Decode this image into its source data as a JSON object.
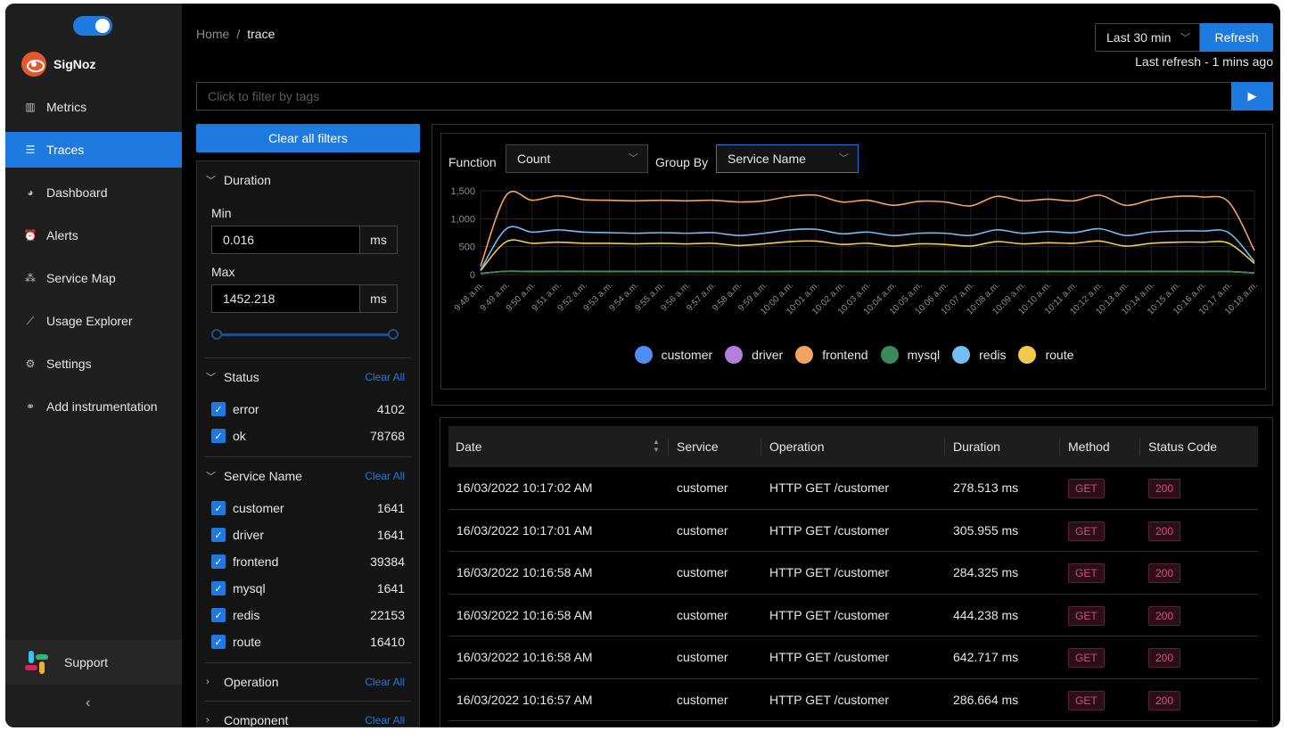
{
  "app": {
    "name": "SigNoz"
  },
  "sidebar": {
    "items": [
      {
        "label": "Metrics",
        "icon": "bar-chart-icon",
        "active": false
      },
      {
        "label": "Traces",
        "icon": "align-left-icon",
        "active": true
      },
      {
        "label": "Dashboard",
        "icon": "dashboard-icon",
        "active": false
      },
      {
        "label": "Alerts",
        "icon": "alarm-icon",
        "active": false
      },
      {
        "label": "Service Map",
        "icon": "deployment-unit-icon",
        "active": false
      },
      {
        "label": "Usage Explorer",
        "icon": "line-chart-icon",
        "active": false
      },
      {
        "label": "Settings",
        "icon": "gear-icon",
        "active": false
      },
      {
        "label": "Add instrumentation",
        "icon": "api-icon",
        "active": false
      }
    ],
    "support_label": "Support"
  },
  "breadcrumb": {
    "home": "Home",
    "current": "trace"
  },
  "header": {
    "time_range": "Last 30 min",
    "refresh_label": "Refresh",
    "last_refresh": "Last refresh - 1 mins ago"
  },
  "tag_filter": {
    "placeholder": "Click to filter by tags"
  },
  "filters": {
    "clear_all_label": "Clear all filters",
    "clear_label": "Clear All",
    "duration": {
      "title": "Duration",
      "min_label": "Min",
      "min_value": "0.016",
      "max_label": "Max",
      "max_value": "1452.218",
      "unit": "ms"
    },
    "status": {
      "title": "Status",
      "options": [
        {
          "name": "error",
          "count": "4102"
        },
        {
          "name": "ok",
          "count": "78768"
        }
      ]
    },
    "service_name": {
      "title": "Service Name",
      "options": [
        {
          "name": "customer",
          "count": "1641"
        },
        {
          "name": "driver",
          "count": "1641"
        },
        {
          "name": "frontend",
          "count": "39384"
        },
        {
          "name": "mysql",
          "count": "1641"
        },
        {
          "name": "redis",
          "count": "22153"
        },
        {
          "name": "route",
          "count": "16410"
        }
      ]
    },
    "operation": {
      "title": "Operation"
    },
    "component": {
      "title": "Component"
    }
  },
  "chart_controls": {
    "function_label": "Function",
    "function_value": "Count",
    "group_by_label": "Group By",
    "group_by_value": "Service Name"
  },
  "chart_data": {
    "type": "line",
    "categories": [
      "9:48 a.m.",
      "9:49 a.m.",
      "9:50 a.m.",
      "9:51 a.m.",
      "9:52 a.m.",
      "9:53 a.m.",
      "9:54 a.m.",
      "9:55 a.m.",
      "9:56 a.m.",
      "9:57 a.m.",
      "9:58 a.m.",
      "9:59 a.m.",
      "10:00 a.m.",
      "10:01 a.m.",
      "10:02 a.m.",
      "10:03 a.m.",
      "10:04 a.m.",
      "10:05 a.m.",
      "10:06 a.m.",
      "10:07 a.m.",
      "10:08 a.m.",
      "10:09 a.m.",
      "10:10 a.m.",
      "10:11 a.m.",
      "10:12 a.m.",
      "10:13 a.m.",
      "10:14 a.m.",
      "10:15 a.m.",
      "10:16 a.m.",
      "10:17 a.m.",
      "10:18 a.m."
    ],
    "y_ticks": [
      "0",
      "500",
      "1,000",
      "1,500"
    ],
    "ylim": [
      0,
      1500
    ],
    "grid": true,
    "legend_position": "bottom",
    "series": [
      {
        "name": "customer",
        "color": "#4e8df5",
        "values": [
          20,
          60,
          55,
          58,
          56,
          55,
          55,
          55,
          56,
          55,
          55,
          54,
          56,
          58,
          55,
          55,
          55,
          56,
          55,
          55,
          56,
          55,
          55,
          55,
          56,
          55,
          55,
          55,
          55,
          55,
          30
        ]
      },
      {
        "name": "driver",
        "color": "#b57edc",
        "values": [
          20,
          60,
          55,
          58,
          56,
          55,
          55,
          55,
          56,
          55,
          55,
          54,
          56,
          58,
          55,
          55,
          55,
          56,
          55,
          55,
          56,
          55,
          55,
          55,
          56,
          55,
          55,
          55,
          55,
          55,
          30
        ]
      },
      {
        "name": "frontend",
        "color": "#f4a261",
        "values": [
          150,
          1420,
          1330,
          1410,
          1340,
          1330,
          1320,
          1330,
          1320,
          1330,
          1300,
          1320,
          1400,
          1420,
          1300,
          1330,
          1240,
          1310,
          1300,
          1230,
          1400,
          1320,
          1350,
          1320,
          1420,
          1240,
          1340,
          1400,
          1390,
          1300,
          430
        ]
      },
      {
        "name": "mysql",
        "color": "#3a8a5a",
        "values": [
          20,
          60,
          55,
          58,
          56,
          55,
          55,
          55,
          56,
          55,
          55,
          54,
          56,
          58,
          55,
          55,
          55,
          56,
          55,
          55,
          56,
          55,
          55,
          55,
          56,
          55,
          55,
          55,
          55,
          55,
          30
        ]
      },
      {
        "name": "redis",
        "color": "#73bdf2",
        "values": [
          80,
          820,
          760,
          800,
          760,
          750,
          740,
          750,
          740,
          750,
          700,
          740,
          800,
          810,
          730,
          760,
          700,
          740,
          740,
          700,
          800,
          740,
          770,
          750,
          820,
          700,
          760,
          780,
          780,
          750,
          230
        ]
      },
      {
        "name": "route",
        "color": "#f2c94c",
        "values": [
          70,
          590,
          560,
          580,
          560,
          560,
          550,
          560,
          550,
          560,
          520,
          550,
          590,
          600,
          540,
          560,
          510,
          550,
          540,
          510,
          590,
          550,
          570,
          560,
          600,
          510,
          560,
          580,
          580,
          560,
          200
        ]
      }
    ]
  },
  "table": {
    "columns": [
      "Date",
      "Service",
      "Operation",
      "Duration",
      "Method",
      "Status Code"
    ],
    "rows": [
      {
        "date": "16/03/2022 10:17:02 AM",
        "service": "customer",
        "operation": "HTTP GET /customer",
        "duration": "278.513 ms",
        "method": "GET",
        "status": "200"
      },
      {
        "date": "16/03/2022 10:17:01 AM",
        "service": "customer",
        "operation": "HTTP GET /customer",
        "duration": "305.955 ms",
        "method": "GET",
        "status": "200"
      },
      {
        "date": "16/03/2022 10:16:58 AM",
        "service": "customer",
        "operation": "HTTP GET /customer",
        "duration": "284.325 ms",
        "method": "GET",
        "status": "200"
      },
      {
        "date": "16/03/2022 10:16:58 AM",
        "service": "customer",
        "operation": "HTTP GET /customer",
        "duration": "444.238 ms",
        "method": "GET",
        "status": "200"
      },
      {
        "date": "16/03/2022 10:16:58 AM",
        "service": "customer",
        "operation": "HTTP GET /customer",
        "duration": "642.717 ms",
        "method": "GET",
        "status": "200"
      },
      {
        "date": "16/03/2022 10:16:57 AM",
        "service": "customer",
        "operation": "HTTP GET /customer",
        "duration": "286.664 ms",
        "method": "GET",
        "status": "200"
      }
    ]
  }
}
